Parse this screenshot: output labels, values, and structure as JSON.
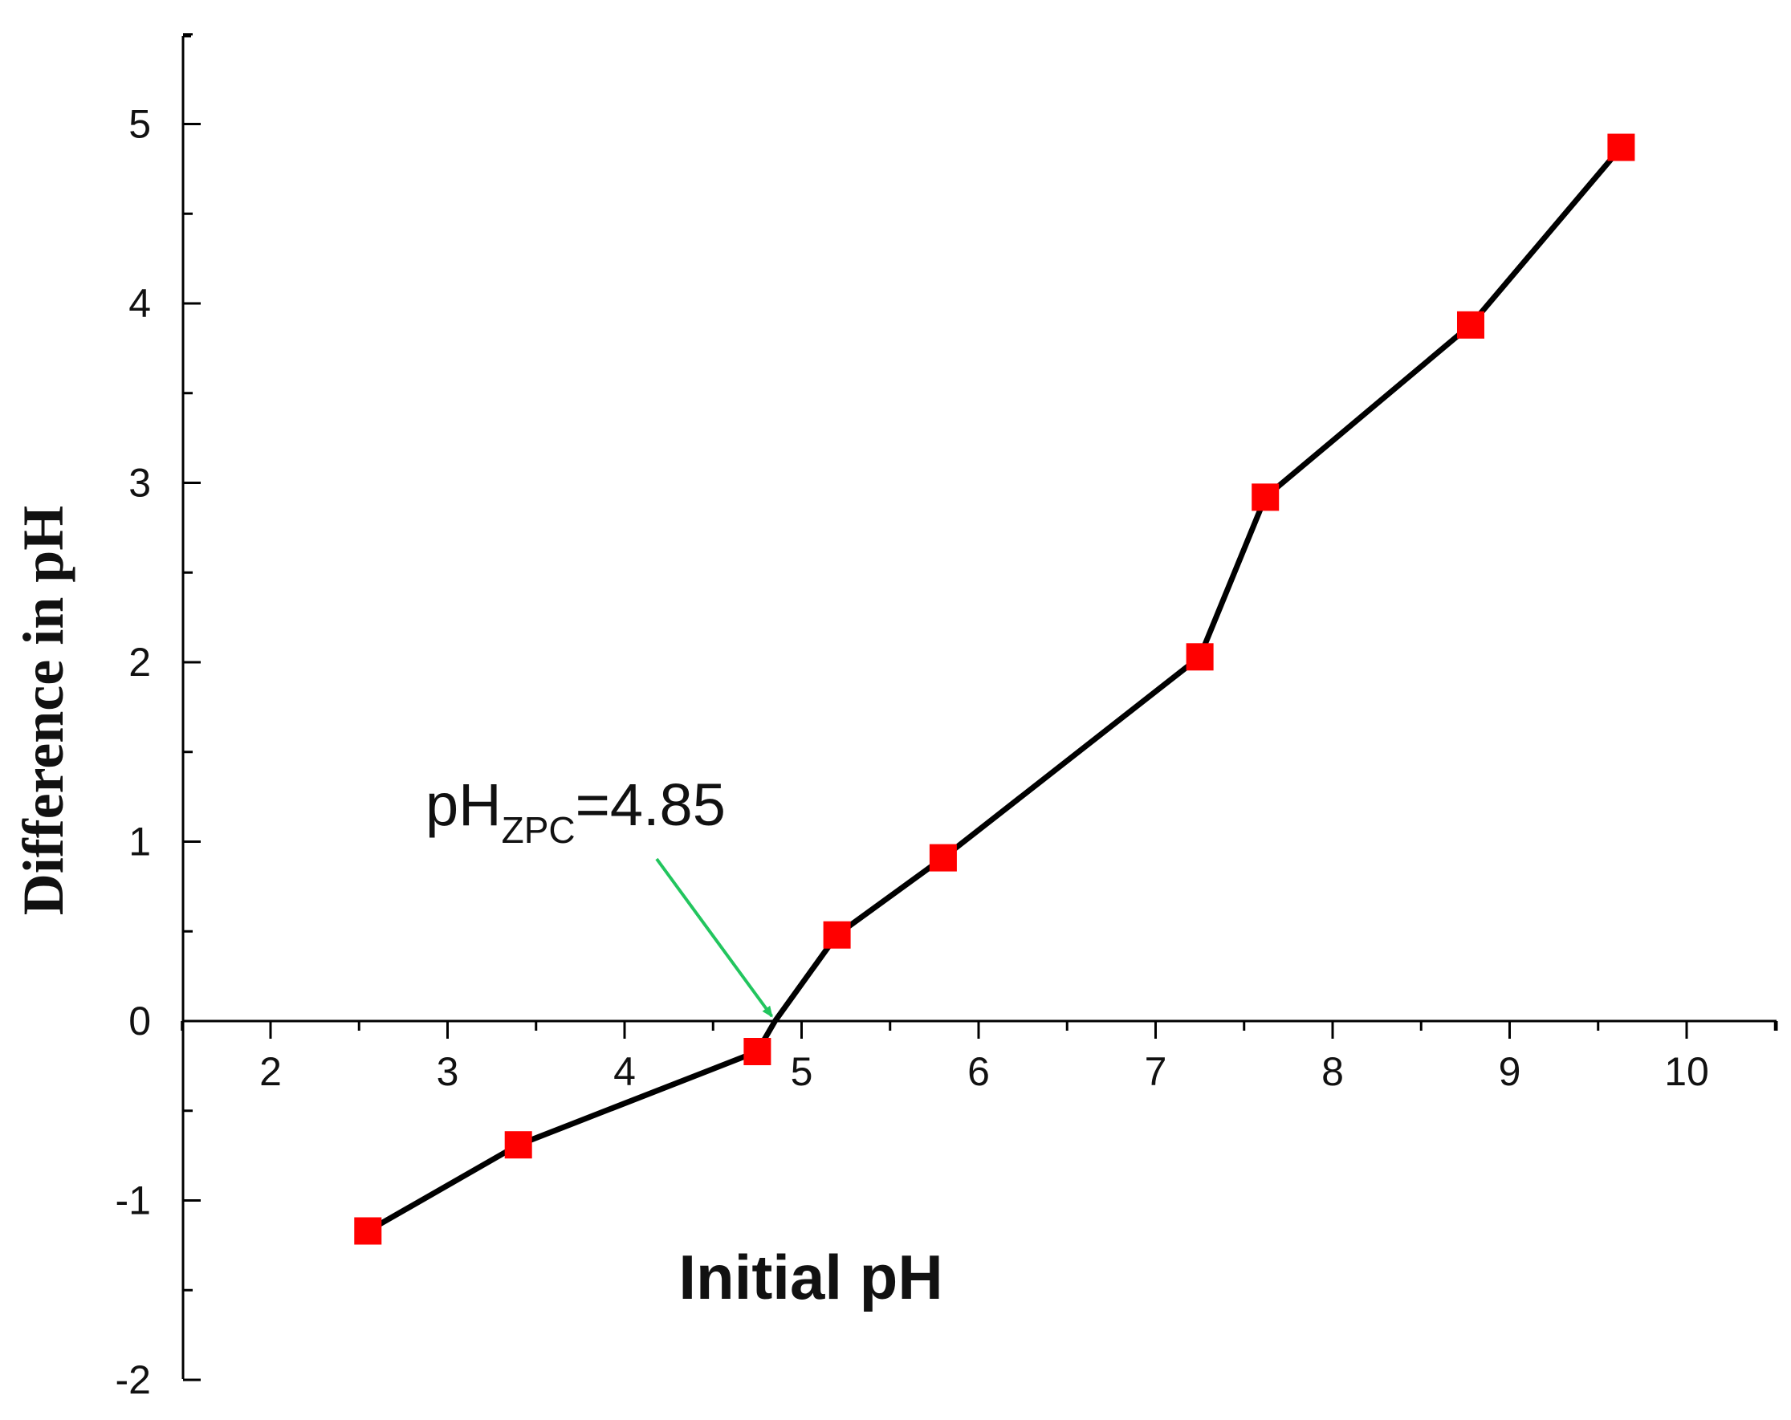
{
  "chart_data": {
    "type": "line",
    "xlabel": "Initial pH",
    "ylabel": "Difference in pH",
    "xlim": [
      1.0,
      10.5
    ],
    "ylim": [
      -2.0,
      5.5
    ],
    "xticks": [
      2,
      3,
      4,
      5,
      6,
      7,
      8,
      9,
      10
    ],
    "xtick_labels": [
      "2",
      "3",
      "4",
      "5",
      "6",
      "7",
      "8",
      "9",
      "10"
    ],
    "yticks": [
      -2,
      -1,
      0,
      1,
      2,
      3,
      4,
      5
    ],
    "ytick_labels": [
      "-2",
      "-1",
      "0",
      "1",
      "2",
      "3",
      "4",
      "5"
    ],
    "x_axis_position": "y = 0",
    "grid": false,
    "legend": "none",
    "series": [
      {
        "x": [
          2.55,
          3.4,
          4.75,
          4.85,
          5.2,
          5.8,
          7.25,
          7.62,
          8.78,
          9.63
        ],
        "y": [
          -1.17,
          -0.69,
          -0.17,
          0.0,
          0.48,
          0.91,
          2.03,
          2.92,
          3.88,
          4.87
        ],
        "markers": [
          true,
          true,
          true,
          false,
          true,
          true,
          true,
          true,
          true,
          true
        ],
        "line_color": "#000000",
        "marker_color": "#ff0000",
        "marker": "square"
      }
    ],
    "annotation": {
      "main": "pH",
      "subscript": "ZPC",
      "suffix": "=4.85",
      "points_to": [
        4.85,
        0.0
      ],
      "arrow_color": "#22c55e"
    }
  }
}
